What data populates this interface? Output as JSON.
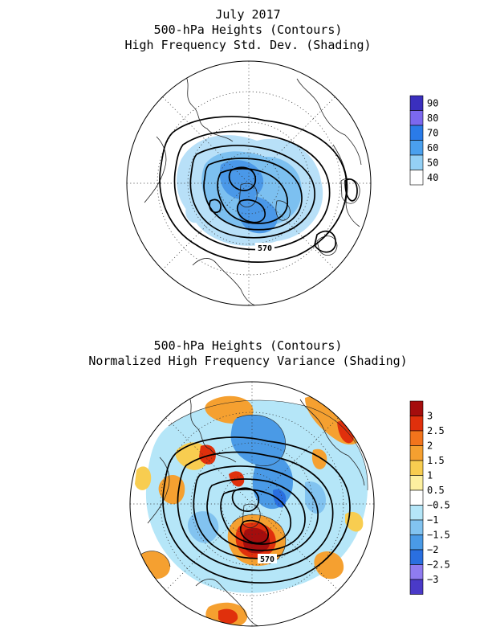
{
  "figure": {
    "month_title": "July 2017",
    "panel1_title_line1": "500-hPa Heights (Contours)",
    "panel1_title_line2": "High Frequency Std. Dev. (Shading)",
    "panel2_title_line1": "500-hPa Heights (Contours)",
    "panel2_title_line2": "Normalized High Frequency Variance (Shading)"
  },
  "map1": {
    "contour_label": "570",
    "colorbar_labels": [
      "90",
      "80",
      "70",
      "60",
      "50",
      "40"
    ],
    "colorbar_colors": [
      "#3a2fbe",
      "#7b68ee",
      "#2a7be8",
      "#4aa0ee",
      "#94d0f5",
      "#ffffff"
    ]
  },
  "map2": {
    "contour_label": "570",
    "colorbar_labels": [
      "3",
      "2.5",
      "2",
      "1.5",
      "1",
      "0.5",
      "−0.5",
      "−1",
      "−1.5",
      "−2",
      "−2.5",
      "−3"
    ],
    "colorbar_colors": [
      "#a50d0d",
      "#e0300c",
      "#f2741c",
      "#f5a030",
      "#f8cd50",
      "#fdf0a0",
      "#ffffff",
      "#b5e6f8",
      "#82c3f0",
      "#4a9ae6",
      "#2a6fe0",
      "#8f7cf0",
      "#4a3ac8"
    ]
  }
}
